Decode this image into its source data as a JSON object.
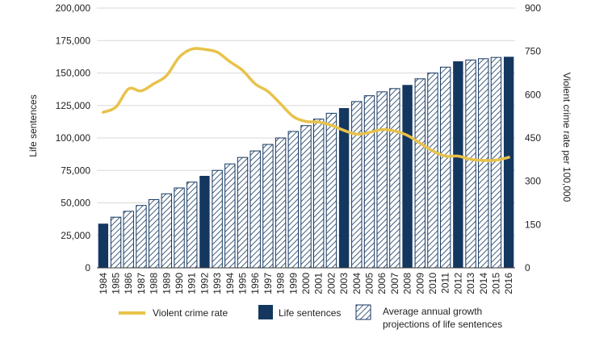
{
  "chart_data": {
    "type": "bar",
    "categories": [
      "1984",
      "1985",
      "1986",
      "1987",
      "1988",
      "1989",
      "1990",
      "1991",
      "1992",
      "1993",
      "1994",
      "1995",
      "1996",
      "1997",
      "1998",
      "1999",
      "2000",
      "2001",
      "2002",
      "2003",
      "2004",
      "2005",
      "2006",
      "2007",
      "2008",
      "2009",
      "2010",
      "2011",
      "2012",
      "2013",
      "2014",
      "2015",
      "2016"
    ],
    "series": [
      {
        "name": "Life sentences",
        "kind": [
          "solid",
          "hatched",
          "hatched",
          "hatched",
          "hatched",
          "hatched",
          "hatched",
          "hatched",
          "solid",
          "hatched",
          "hatched",
          "hatched",
          "hatched",
          "hatched",
          "hatched",
          "hatched",
          "hatched",
          "hatched",
          "hatched",
          "solid",
          "hatched",
          "hatched",
          "hatched",
          "hatched",
          "solid",
          "hatched",
          "hatched",
          "hatched",
          "solid",
          "hatched",
          "hatched",
          "hatched",
          "solid"
        ],
        "values": [
          34000,
          39000,
          43500,
          48000,
          52500,
          57000,
          61500,
          66000,
          70800,
          75000,
          80000,
          85000,
          90000,
          95000,
          100000,
          105000,
          109500,
          114500,
          119000,
          123000,
          128000,
          132500,
          135500,
          138000,
          140800,
          145500,
          150000,
          154500,
          159000,
          160000,
          161000,
          162000,
          162500
        ]
      },
      {
        "name": "Violent crime rate",
        "axis": "right",
        "color": "#e8c24a",
        "values": [
          539,
          557,
          620,
          613,
          638,
          666,
          730,
          758,
          757,
          747,
          714,
          684,
          637,
          611,
          568,
          524,
          507,
          505,
          494,
          476,
          463,
          469,
          479,
          474,
          459,
          432,
          405,
          387,
          387,
          376,
          372,
          373,
          383
        ]
      }
    ],
    "ylabel": "Life sentences",
    "y2label": "Violent crime rate per 100,000",
    "ylim": [
      0,
      200000
    ],
    "y2lim": [
      0,
      900
    ],
    "yticks": [
      "0",
      "25,000",
      "50,000",
      "75,000",
      "100,000",
      "125,000",
      "150,000",
      "175,000",
      "200,000"
    ],
    "y2ticks": [
      "0",
      "150",
      "300",
      "450",
      "600",
      "750",
      "900"
    ],
    "grid": "horizontal",
    "legend": {
      "position": "bottom",
      "crime_label": "Violent crime rate",
      "life_label": "Life sentences",
      "proj_label_line1": "Average annual growth",
      "proj_label_line2": "projections of life sentences"
    },
    "colors": {
      "bar": "#143760",
      "line": "#e8c24a",
      "grid": "#d9d9d9",
      "axis": "#333333"
    }
  }
}
